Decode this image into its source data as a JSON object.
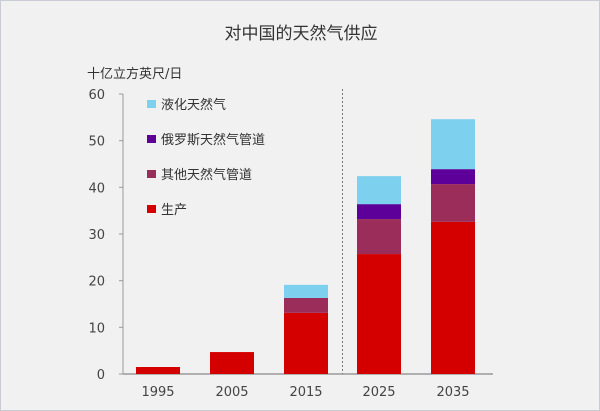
{
  "chart_data": {
    "type": "bar",
    "stacked": true,
    "title": "对中国的天然气供应",
    "ylabel": "十亿立方英尺/日",
    "xlabel": "",
    "ylim": [
      0,
      60
    ],
    "yticks": [
      0,
      10,
      20,
      30,
      40,
      50,
      60
    ],
    "categories": [
      "1995",
      "2005",
      "2015",
      "2025",
      "2035"
    ],
    "divider_after": "2015",
    "legend_position": "top-left",
    "grid": false,
    "series": [
      {
        "name": "生产",
        "color": "#d40000",
        "values": [
          1.5,
          4.7,
          13.1,
          25.7,
          32.6
        ]
      },
      {
        "name": "其他天然气管道",
        "color": "#9b2d5a",
        "values": [
          0,
          0,
          3.2,
          7.5,
          8.1
        ]
      },
      {
        "name": "俄罗斯天然气管道",
        "color": "#5c0099",
        "values": [
          0,
          0,
          0,
          3.2,
          3.2
        ]
      },
      {
        "name": "液化天然气",
        "color": "#7dd0ee",
        "values": [
          0,
          0,
          2.8,
          6.0,
          10.7
        ]
      }
    ],
    "legend_order": [
      3,
      2,
      1,
      0
    ]
  }
}
